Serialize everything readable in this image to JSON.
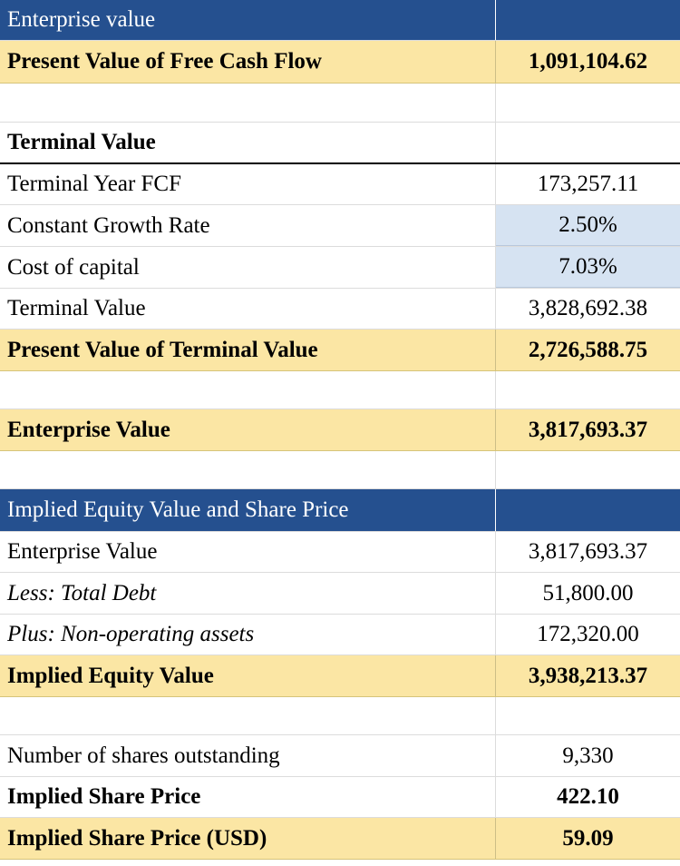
{
  "section_ev": {
    "header": "Enterprise value",
    "pv_fcf": {
      "label": "Present Value of Free Cash Flow",
      "value": "1,091,104.62"
    }
  },
  "terminal": {
    "heading": "Terminal Value",
    "rows": [
      {
        "label": "Terminal Year FCF",
        "value": "173,257.11"
      },
      {
        "label": "Constant Growth Rate",
        "value": "2.50%"
      },
      {
        "label": "Cost of capital",
        "value": "7.03%"
      },
      {
        "label": "Terminal Value",
        "value": "3,828,692.38"
      }
    ],
    "pv_tv": {
      "label": "Present Value of Terminal Value",
      "value": "2,726,588.75"
    }
  },
  "enterprise_value": {
    "label": "Enterprise Value",
    "value": "3,817,693.37"
  },
  "equity": {
    "header": "Implied Equity Value and Share Price",
    "rows": [
      {
        "label": "Enterprise Value",
        "value": "3,817,693.37"
      },
      {
        "label": "Less: Total Debt",
        "value": "51,800.00"
      },
      {
        "label": "Plus: Non-operating assets",
        "value": "172,320.00"
      }
    ],
    "implied_equity": {
      "label": "Implied Equity Value",
      "value": "3,938,213.37"
    }
  },
  "shares": {
    "outstanding": {
      "label": "Number of shares outstanding",
      "value": "9,330"
    },
    "price": {
      "label": "Implied Share Price",
      "value": "422.10"
    },
    "price_usd": {
      "label": "Implied Share Price (USD)",
      "value": "59.09"
    }
  },
  "colors": {
    "header_blue": "#25508f",
    "highlight_yellow": "#fbe6a4",
    "input_blue": "#d6e3f2"
  }
}
